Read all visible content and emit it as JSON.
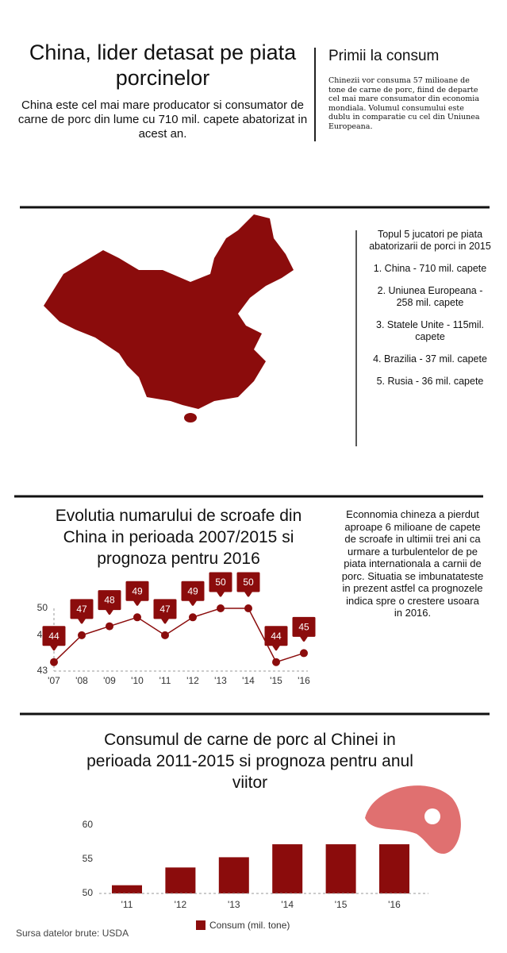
{
  "header": {
    "title": "China, lider detasat pe piata porcinelor",
    "subtitle": "China este cel mai mare producator si consumator de carne de porc din lume cu 710 mil. capete abatorizat in acest an."
  },
  "sidebar": {
    "title": "Primii la consum",
    "text": "Chinezii vor consuma 57 milioane de tone de carne de porc, fiind de departe cel mai mare consumator din economia mondiala. Volumul consumului este dublu in comparatie cu cel din Uniunea Europeana."
  },
  "top5": {
    "title": "Topul 5 jucatori pe piata abatorizarii de porci in 2015",
    "items": [
      "1. China - 710 mil. capete",
      "2. Uniunea Europeana - 258 mil. capete",
      "3. Statele Unite - 115mil. capete",
      "4. Brazilia - 37 mil. capete",
      "5. Rusia - 36 mil. capete"
    ]
  },
  "note": "Econnomia chineza a pierdut aproape 6 milioane de capete de scroafe in ultimii trei ani ca urmare a turbulentelor de pe piata internationala a carnii de porc. Situatia se imbunatateste in prezent astfel ca prognozele indica spre o crestere usoara in 2016.",
  "chart_data": [
    {
      "type": "line",
      "title": "Evolutia numarului de scroafe din China in perioada 2007/2015 si prognoza pentru 2016",
      "categories": [
        "'07",
        "'08",
        "'09",
        "'10",
        "'11",
        "'12",
        "'13",
        "'14",
        "'15",
        "'16"
      ],
      "values": [
        44,
        47,
        48,
        49,
        47,
        49,
        50,
        50,
        44,
        45
      ],
      "color": "#8b0c0c",
      "ylim": [
        43,
        50
      ],
      "yticks": [
        43,
        47,
        50
      ]
    },
    {
      "type": "bar",
      "title": "Consumul de carne de porc al Chinei in perioada 2011-2015 si prognoza pentru anul viitor",
      "categories": [
        "'11",
        "'12",
        "'13",
        "'14",
        "'15",
        "'16"
      ],
      "series": [
        {
          "name": "Consum (mil. tone)",
          "color": "#8b0c0c",
          "values": [
            51.2,
            53.8,
            55.3,
            57.2,
            57.2,
            57.2
          ]
        }
      ],
      "ylim": [
        50,
        60
      ],
      "yticks": [
        50,
        55,
        60
      ]
    }
  ],
  "source": "Sursa datelor brute: USDA"
}
